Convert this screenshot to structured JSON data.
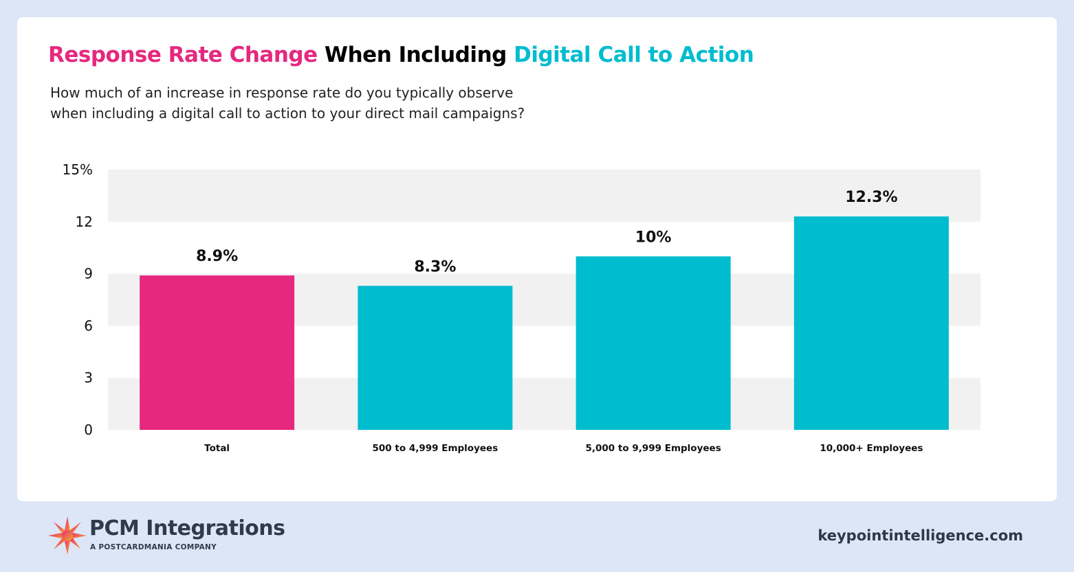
{
  "header": {
    "title_part1": "Response Rate Change",
    "title_part2": "When Including",
    "title_part3": "Digital Call to Action",
    "subtitle_line1": "How much of an increase in response rate do you typically observe",
    "subtitle_line2": "when including a digital call to action to your direct mail campaigns?"
  },
  "chart_data": {
    "type": "bar",
    "title": "Response Rate Change When Including Digital Call to Action",
    "categories": [
      "Total",
      "500 to 4,999 Employees",
      "5,000 to 9,999 Employees",
      "10,000+ Employees"
    ],
    "values": [
      8.9,
      8.3,
      10,
      12.3
    ],
    "data_labels": [
      "8.9%",
      "8.3%",
      "10%",
      "12.3%"
    ],
    "bar_colors": [
      "#e6287f",
      "#00bccf",
      "#00bccf",
      "#00bccf"
    ],
    "ylim": [
      0,
      15
    ],
    "yticks": [
      0,
      3,
      6,
      9,
      12,
      15
    ],
    "ytick_labels": [
      "0",
      "3",
      "6",
      "9",
      "12",
      "15%"
    ],
    "grid": "alternating bands",
    "band_color": "#f1f1f1"
  },
  "footer": {
    "logo_name": "PCM Integrations",
    "logo_tagline": "A POSTCARDMANIA COMPANY",
    "url": "keypointintelligence.com"
  }
}
